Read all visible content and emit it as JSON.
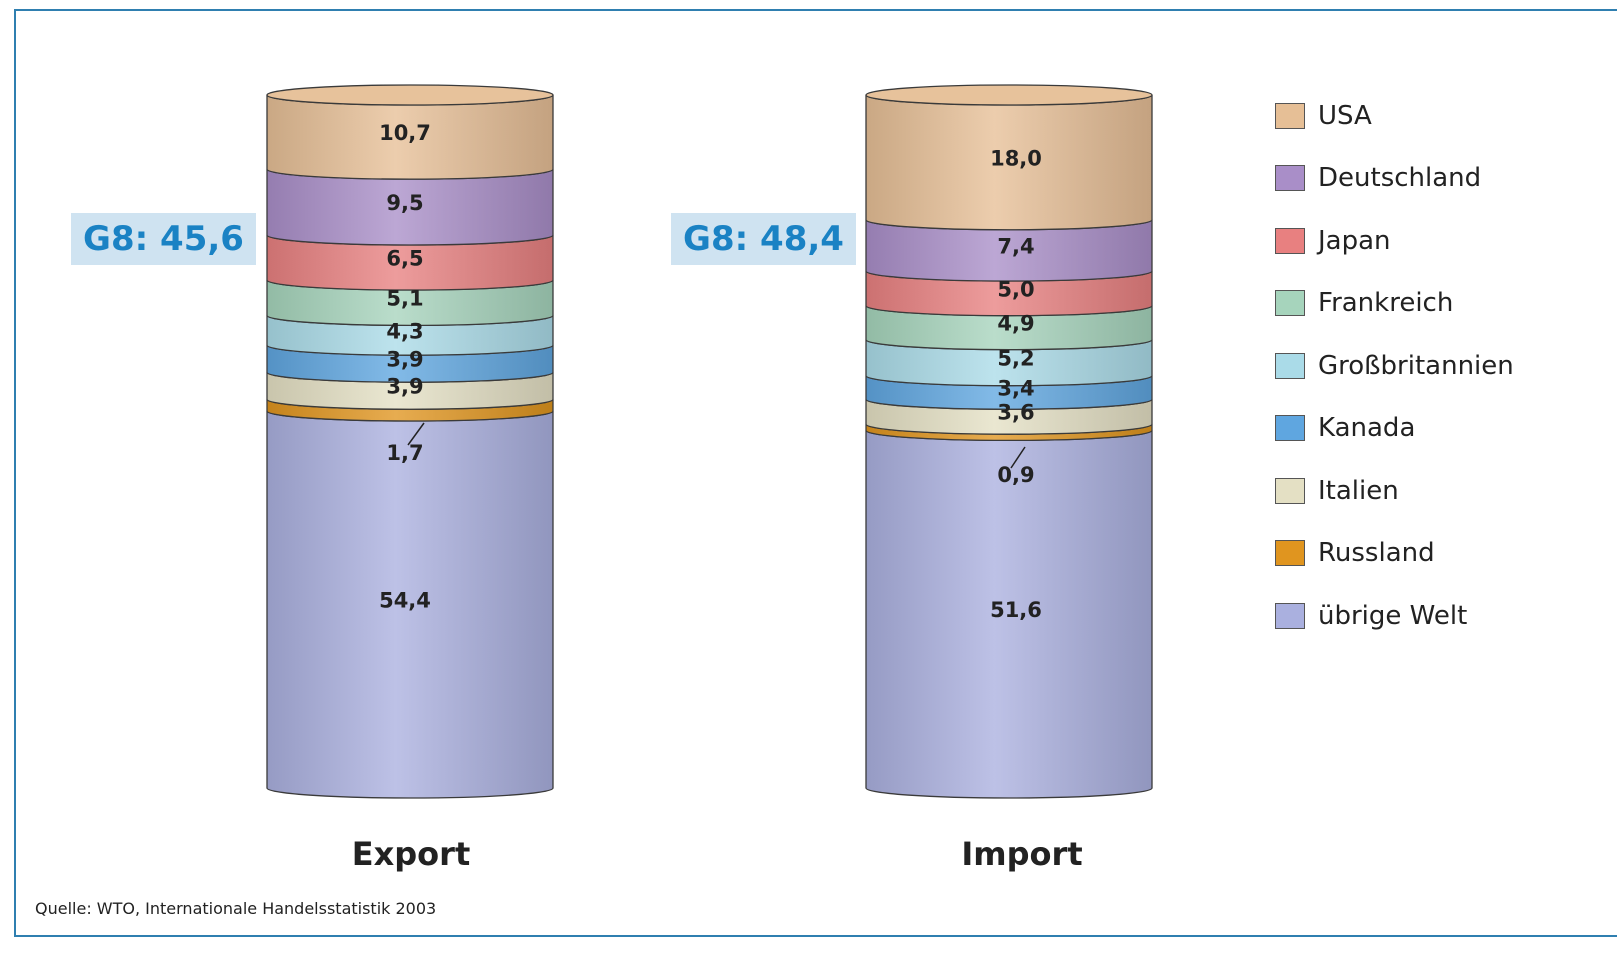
{
  "chart_data": {
    "type": "bar",
    "stacked": true,
    "style": "3d-cylinder",
    "categories": [
      "Export",
      "Import"
    ],
    "series": [
      {
        "name": "USA",
        "color": "#e6bf96",
        "values": [
          10.7,
          18.0
        ],
        "labels": [
          "10,7",
          "18,0"
        ]
      },
      {
        "name": "Deutschland",
        "color": "#a98ec8",
        "values": [
          9.5,
          7.4
        ],
        "labels": [
          "9,5",
          "7,4"
        ]
      },
      {
        "name": "Japan",
        "color": "#e88080",
        "values": [
          6.5,
          5.0
        ],
        "labels": [
          "6,5",
          "5,0"
        ]
      },
      {
        "name": "Frankreich",
        "color": "#a6d4bc",
        "values": [
          5.1,
          4.9
        ],
        "labels": [
          "5,1",
          "4,9"
        ]
      },
      {
        "name": "Großbritannien",
        "color": "#aadbe8",
        "values": [
          4.3,
          5.2
        ],
        "labels": [
          "4,3",
          "5,2"
        ]
      },
      {
        "name": "Kanada",
        "color": "#5fa6e0",
        "values": [
          3.9,
          3.4
        ],
        "labels": [
          "3,9",
          "3,4"
        ]
      },
      {
        "name": "Italien",
        "color": "#e4e0c4",
        "values": [
          3.9,
          3.6
        ],
        "labels": [
          "3,9",
          "3,6"
        ]
      },
      {
        "name": "Russland",
        "color": "#e0951f",
        "values": [
          1.7,
          0.9
        ],
        "labels": [
          "1,7",
          "0,9"
        ]
      },
      {
        "name": "übrige Welt",
        "color": "#aab0df",
        "values": [
          54.4,
          51.6
        ],
        "labels": [
          "54,4",
          "51,6"
        ]
      }
    ],
    "group_totals": [
      {
        "category": "Export",
        "label": "G8: 45,6"
      },
      {
        "category": "Import",
        "label": "G8: 48,4"
      }
    ],
    "legend_position": "right",
    "grid": false,
    "source": "Quelle: WTO, Internationale Handelsstatistik 2003"
  }
}
